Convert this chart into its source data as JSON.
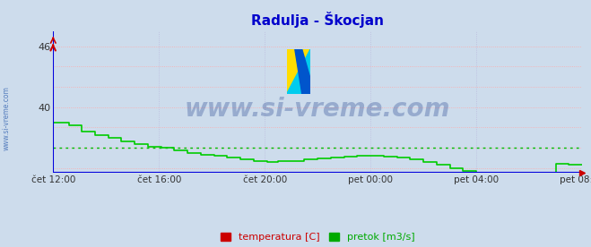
{
  "title": "Radulja - Škocjan",
  "title_color": "#0000cc",
  "bg_color": "#cddcec",
  "plot_bg_color": "#cddcec",
  "grid_color_h": "#ffaaaa",
  "grid_color_v": "#bbbbdd",
  "ylim": [
    33.5,
    47.5
  ],
  "yticks": [
    34,
    36,
    38,
    40,
    42,
    44,
    46
  ],
  "ytick_labels": [
    "",
    "",
    "",
    "40",
    "",
    "",
    "46"
  ],
  "xtick_labels": [
    "čet 12:00",
    "čet 16:00",
    "čet 20:00",
    "pet 00:00",
    "pet 04:00",
    "pet 08:00"
  ],
  "xtick_positions": [
    0,
    4,
    8,
    12,
    16,
    20
  ],
  "x_total_hours": 20,
  "line_color": "#00cc00",
  "avg_line_color": "#00bb00",
  "avg_line_y": 36.0,
  "axis_color": "#0000dd",
  "watermark_text": "www.si-vreme.com",
  "watermark_color": "#1a3a8a",
  "watermark_alpha": 0.3,
  "watermark_fontsize": 20,
  "legend_temp_color": "#cc0000",
  "legend_flow_color": "#00aa00",
  "legend_temp_label": "temperatura [C]",
  "legend_flow_label": "pretok [m3/s]",
  "flow_x": [
    0.0,
    0.5,
    0.583,
    1.0,
    1.083,
    1.5,
    1.583,
    2.0,
    2.083,
    2.5,
    2.583,
    3.0,
    3.083,
    3.5,
    3.583,
    4.0,
    4.083,
    4.5,
    4.583,
    5.0,
    5.083,
    5.5,
    5.583,
    6.0,
    6.083,
    6.5,
    6.583,
    7.0,
    7.083,
    7.5,
    7.583,
    8.0,
    8.083,
    8.5,
    8.583,
    9.0,
    9.083,
    9.5,
    9.583,
    10.0,
    10.083,
    10.5,
    10.583,
    11.0,
    11.083,
    11.5,
    11.583,
    12.0,
    12.083,
    12.5,
    12.583,
    13.0,
    13.083,
    13.5,
    13.583,
    14.0,
    14.083,
    14.5,
    14.583,
    15.0,
    15.083,
    15.5,
    15.583,
    16.0,
    16.083,
    16.5,
    16.583,
    17.0,
    17.083,
    17.5,
    17.583,
    18.0,
    18.083,
    18.5,
    18.583,
    19.0,
    19.083,
    19.5,
    19.583,
    20.0
  ],
  "flow_y": [
    38.5,
    38.5,
    38.2,
    38.2,
    37.6,
    37.6,
    37.2,
    37.2,
    37.0,
    37.0,
    36.6,
    36.6,
    36.3,
    36.3,
    36.1,
    36.1,
    36.0,
    36.0,
    35.7,
    35.7,
    35.5,
    35.5,
    35.3,
    35.3,
    35.2,
    35.2,
    35.0,
    35.0,
    34.85,
    34.85,
    34.7,
    34.7,
    34.6,
    34.65,
    34.65,
    34.7,
    34.7,
    34.8,
    34.8,
    34.9,
    34.9,
    35.0,
    35.0,
    35.1,
    35.1,
    35.15,
    35.15,
    35.2,
    35.2,
    35.1,
    35.1,
    35.0,
    35.0,
    34.85,
    34.85,
    34.6,
    34.6,
    34.3,
    34.3,
    34.0,
    34.0,
    33.7,
    33.7,
    33.5,
    33.5,
    33.2,
    33.2,
    33.0,
    33.0,
    32.7,
    32.7,
    32.4,
    32.4,
    32.1,
    32.1,
    34.4,
    34.4,
    34.3,
    34.3,
    34.3
  ]
}
